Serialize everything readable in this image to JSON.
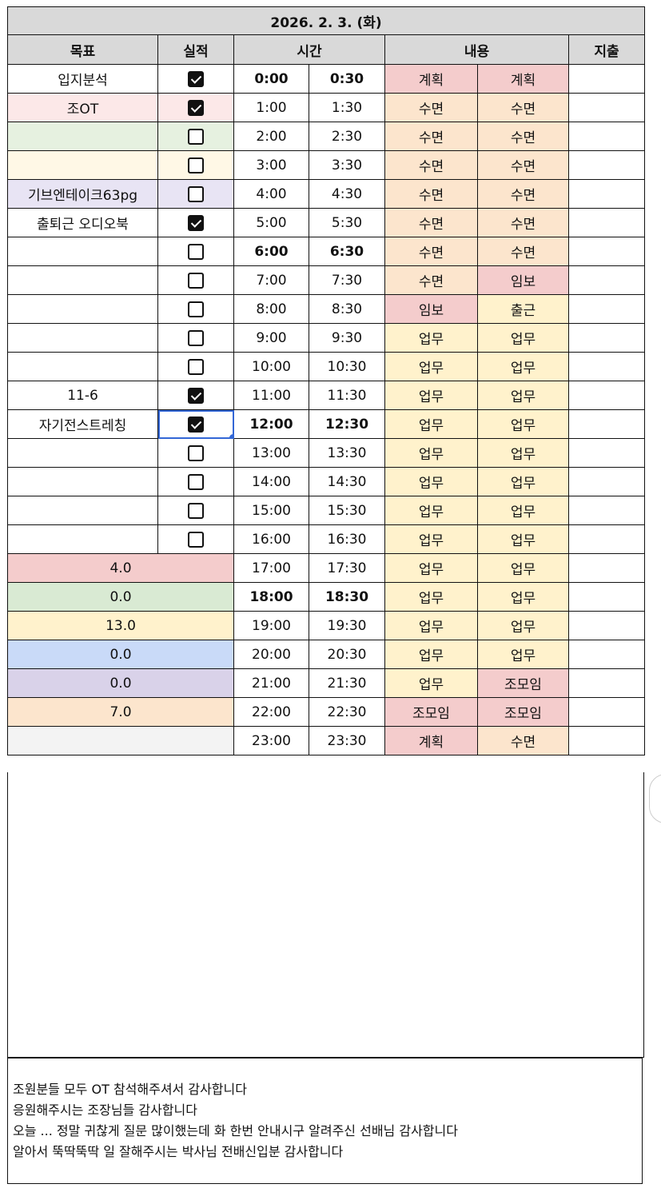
{
  "title": "2026. 2. 3. (화)",
  "headers": {
    "goal": "목표",
    "done": "실적",
    "time": "시간",
    "content": "내용",
    "expense": "지출"
  },
  "colors": {
    "계획": "#f4cccc",
    "수면": "#fce5cd",
    "임보": "#f4cccc",
    "출근": "#fff2cc",
    "업무": "#fff2cc",
    "조모임": "#f4cccc",
    "selection": "#3367d6"
  },
  "goals": [
    {
      "text": "입지분석",
      "checked": true,
      "bg": "#ffffff"
    },
    {
      "text": "조OT",
      "checked": true,
      "bg": "#fce8e8"
    },
    {
      "text": "",
      "checked": false,
      "bg": "#e6f1e0"
    },
    {
      "text": "",
      "checked": false,
      "bg": "#fff8e6"
    },
    {
      "text": "기브엔테이크63pg",
      "checked": false,
      "bg": "#e8e4f4"
    },
    {
      "text": "출퇴근 오디오북",
      "checked": true,
      "bg": "#ffffff"
    },
    {
      "text": "",
      "checked": false,
      "bg": "#ffffff"
    },
    {
      "text": "",
      "checked": false,
      "bg": "#ffffff"
    },
    {
      "text": "",
      "checked": false,
      "bg": "#ffffff"
    },
    {
      "text": "",
      "checked": false,
      "bg": "#ffffff"
    },
    {
      "text": "",
      "checked": false,
      "bg": "#ffffff"
    },
    {
      "text": "11-6",
      "checked": true,
      "bg": "#ffffff"
    },
    {
      "text": "자기전스트레칭",
      "checked": true,
      "bg": "#ffffff",
      "selected": true
    },
    {
      "text": "",
      "checked": false,
      "bg": "#ffffff"
    },
    {
      "text": "",
      "checked": false,
      "bg": "#ffffff"
    },
    {
      "text": "",
      "checked": false,
      "bg": "#ffffff"
    },
    {
      "text": "",
      "checked": false,
      "bg": "#ffffff"
    }
  ],
  "totals": [
    {
      "value": "4.0",
      "bg": "#f4cccc"
    },
    {
      "value": "0.0",
      "bg": "#d9ead3"
    },
    {
      "value": "13.0",
      "bg": "#fff2cc"
    },
    {
      "value": "0.0",
      "bg": "#c9daf8"
    },
    {
      "value": "0.0",
      "bg": "#d9d2e9"
    },
    {
      "value": "7.0",
      "bg": "#fce5cd"
    },
    {
      "value": "",
      "bg": "#f3f3f3"
    }
  ],
  "rows": [
    {
      "t1": "0:00",
      "t2": "0:30",
      "c1": "계획",
      "c2": "계획",
      "bold": true
    },
    {
      "t1": "1:00",
      "t2": "1:30",
      "c1": "수면",
      "c2": "수면"
    },
    {
      "t1": "2:00",
      "t2": "2:30",
      "c1": "수면",
      "c2": "수면"
    },
    {
      "t1": "3:00",
      "t2": "3:30",
      "c1": "수면",
      "c2": "수면"
    },
    {
      "t1": "4:00",
      "t2": "4:30",
      "c1": "수면",
      "c2": "수면"
    },
    {
      "t1": "5:00",
      "t2": "5:30",
      "c1": "수면",
      "c2": "수면"
    },
    {
      "t1": "6:00",
      "t2": "6:30",
      "c1": "수면",
      "c2": "수면",
      "bold": true
    },
    {
      "t1": "7:00",
      "t2": "7:30",
      "c1": "수면",
      "c2": "임보"
    },
    {
      "t1": "8:00",
      "t2": "8:30",
      "c1": "임보",
      "c2": "출근"
    },
    {
      "t1": "9:00",
      "t2": "9:30",
      "c1": "업무",
      "c2": "업무"
    },
    {
      "t1": "10:00",
      "t2": "10:30",
      "c1": "업무",
      "c2": "업무"
    },
    {
      "t1": "11:00",
      "t2": "11:30",
      "c1": "업무",
      "c2": "업무"
    },
    {
      "t1": "12:00",
      "t2": "12:30",
      "c1": "업무",
      "c2": "업무",
      "bold": true
    },
    {
      "t1": "13:00",
      "t2": "13:30",
      "c1": "업무",
      "c2": "업무"
    },
    {
      "t1": "14:00",
      "t2": "14:30",
      "c1": "업무",
      "c2": "업무"
    },
    {
      "t1": "15:00",
      "t2": "15:30",
      "c1": "업무",
      "c2": "업무"
    },
    {
      "t1": "16:00",
      "t2": "16:30",
      "c1": "업무",
      "c2": "업무"
    },
    {
      "t1": "17:00",
      "t2": "17:30",
      "c1": "업무",
      "c2": "업무"
    },
    {
      "t1": "18:00",
      "t2": "18:30",
      "c1": "업무",
      "c2": "업무",
      "bold": true
    },
    {
      "t1": "19:00",
      "t2": "19:30",
      "c1": "업무",
      "c2": "업무"
    },
    {
      "t1": "20:00",
      "t2": "20:30",
      "c1": "업무",
      "c2": "업무"
    },
    {
      "t1": "21:00",
      "t2": "21:30",
      "c1": "업무",
      "c2": "조모임"
    },
    {
      "t1": "22:00",
      "t2": "22:30",
      "c1": "조모임",
      "c2": "조모임"
    },
    {
      "t1": "23:00",
      "t2": "23:30",
      "c1": "계획",
      "c2": "수면"
    }
  ],
  "notes": [
    "조원분들 모두 OT 참석해주셔서 감사합니다",
    "응원해주시는 조장님들 감사합니다",
    "오늘 ... 정말 귀찮게 질문 많이했는데 화 한번 안내시구 알려주신 선배님 감사합니다",
    "알아서 뚝딱뚝딱 일 잘해주시는 박사님 전배신입분 감사합니다"
  ]
}
